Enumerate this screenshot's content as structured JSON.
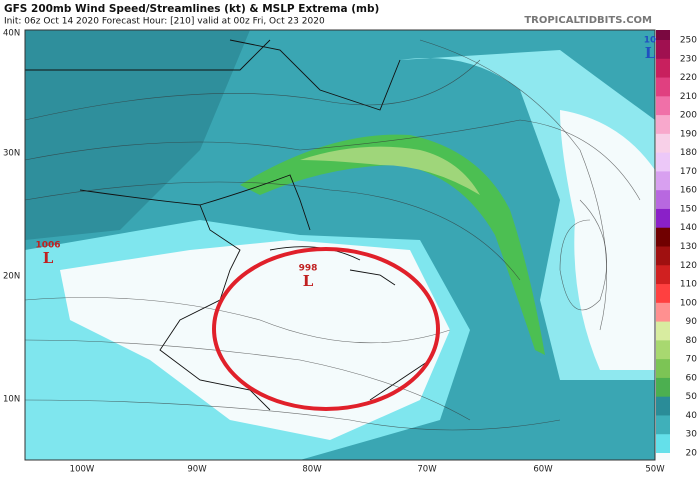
{
  "header": {
    "title": "GFS 200mb Wind Speed/Streamlines (kt) & MSLP Extrema (mb)",
    "subtitle": "Init: 06z Oct 14 2020   Forecast Hour: [210]   valid at 00z Fri, Oct 23 2020",
    "source": "TROPICALTIDBITS.COM"
  },
  "axes": {
    "lat_labels": [
      "40N",
      "30N",
      "20N",
      "10N"
    ],
    "lon_labels": [
      "100W",
      "90W",
      "80W",
      "70W",
      "60W",
      "50W"
    ]
  },
  "colorbar": {
    "labels": [
      "250",
      "230",
      "220",
      "210",
      "200",
      "190",
      "180",
      "170",
      "160",
      "150",
      "140",
      "130",
      "120",
      "110",
      "100",
      "90",
      "80",
      "70",
      "60",
      "50",
      "40",
      "30",
      "20"
    ]
  },
  "lows": [
    {
      "pressure": "1006",
      "symbol": "L"
    },
    {
      "pressure": "998",
      "symbol": "L"
    },
    {
      "pressure": "10",
      "symbol": "L"
    }
  ]
}
